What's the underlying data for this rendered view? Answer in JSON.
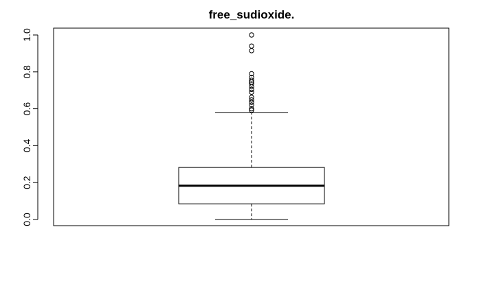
{
  "chart_data": {
    "type": "boxplot",
    "title": "free_sudioxide.",
    "xlabel": "",
    "ylabel": "",
    "ylim": [
      0,
      1
    ],
    "y_ticks": [
      "0.0",
      "0.2",
      "0.4",
      "0.6",
      "0.8",
      "1.0"
    ],
    "y_tick_values": [
      0.0,
      0.2,
      0.4,
      0.6,
      0.8,
      1.0
    ],
    "grid": false,
    "box": {
      "whisker_low": 0.0,
      "q1": 0.085,
      "median": 0.183,
      "q3": 0.282,
      "whisker_high": 0.578
    },
    "outliers": [
      0.592,
      0.6,
      0.62,
      0.635,
      0.648,
      0.662,
      0.69,
      0.705,
      0.72,
      0.735,
      0.745,
      0.755,
      0.77,
      0.79,
      0.915,
      0.94,
      1.0
    ]
  }
}
